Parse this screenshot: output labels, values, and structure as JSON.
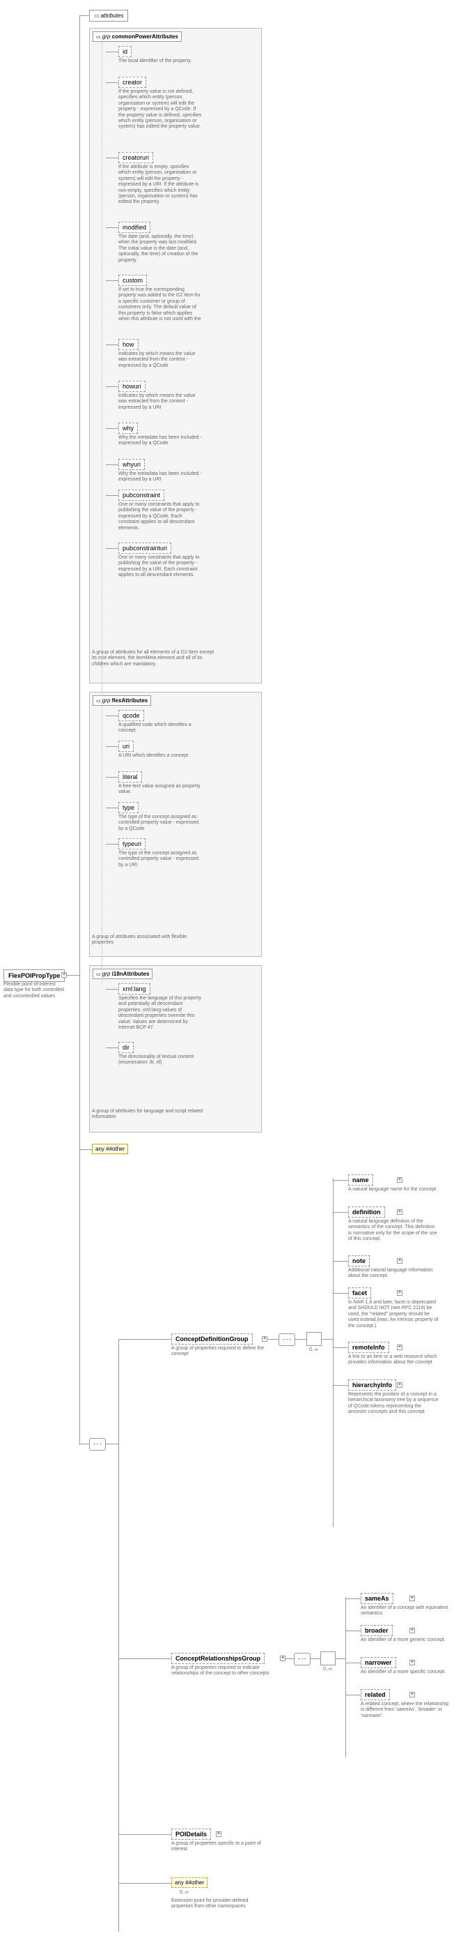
{
  "root": {
    "name": "FlexPOIPropType",
    "desc": "Flexible point-of-interest data type for both controlled and uncontrolled values"
  },
  "group_common": {
    "label": "grp",
    "title": "commonPowerAttributes",
    "desc": "A group of attributes for all elements of a G2 Item except its root element, the itemMeta element and all of its children which are mandatory.",
    "attrs": [
      {
        "name": "id",
        "desc": "The local identifier of the property."
      },
      {
        "name": "creator",
        "desc": "If the property value is not defined, specifies which entity (person, organisation or system) will edit the property - expressed by a QCode. If the property value is defined, specifies which entity (person, organisation or system) has edited the property value."
      },
      {
        "name": "creatoruri",
        "desc": "If the attribute is empty, specifies which entity (person, organisation or system) will edit the property - expressed by a URI. If the attribute is non-empty, specifies which entity (person, organisation or system) has edited the property."
      },
      {
        "name": "modified",
        "desc": "The date (and, optionally, the time) when the property was last modified. The initial value is the date (and, optionally, the time) of creation of the property."
      },
      {
        "name": "custom",
        "desc": "If set to true the corresponding property was added to the G2 Item for a specific customer or group of customers only. The default value of this property is false which applies when this attribute is not used with the"
      },
      {
        "name": "how",
        "desc": "Indicates by which means the value was extracted from the content - expressed by a QCode"
      },
      {
        "name": "howuri",
        "desc": "Indicates by which means the value was extracted from the content - expressed by a URI"
      },
      {
        "name": "why",
        "desc": "Why the metadata has been included - expressed by a QCode"
      },
      {
        "name": "whyuri",
        "desc": "Why the metadata has been included - expressed by a URI"
      },
      {
        "name": "pubconstraint",
        "desc": "One or many constraints that apply to publishing the value of the property - expressed by a QCode. Each constraint applies to all descendant elements."
      },
      {
        "name": "pubconstrainturi",
        "desc": "One or many constraints that apply to publishing the value of the property - expressed by a URI. Each constraint applies to all descendant elements."
      }
    ]
  },
  "group_flex": {
    "label": "grp",
    "title": "flexAttributes",
    "desc": "A group of attributes associated with flexible properties",
    "attrs": [
      {
        "name": "qcode",
        "desc": "A qualified code which identifies a concept."
      },
      {
        "name": "uri",
        "desc": "A URI which identifies a concept."
      },
      {
        "name": "literal",
        "desc": "A free-text value assigned as property value."
      },
      {
        "name": "type",
        "desc": "The type of the concept assigned as controlled property value - expressed by a QCode"
      },
      {
        "name": "typeuri",
        "desc": "The type of the concept assigned as controlled property value - expressed by a URI"
      }
    ]
  },
  "group_i18n": {
    "label": "grp",
    "title": "i18nAttributes",
    "desc": "A group of attributes for language and script related information",
    "attrs": [
      {
        "name": "xml:lang",
        "desc": "Specifies the language of this property and potentially all descendant properties. xml:lang values of descendant properties override this value. Values are determined by Internet BCP 47."
      },
      {
        "name": "dir",
        "desc": "The directionality of textual content (enumeration: ltr, rtl)"
      }
    ]
  },
  "any_other_top": "any ##other",
  "concept_def_group": {
    "name": "ConceptDefinitionGroup",
    "desc": "A group of properties required to define the concept",
    "card": "0..∞",
    "items": [
      {
        "name": "name",
        "desc": "A natural language name for the concept."
      },
      {
        "name": "definition",
        "desc": "A natural language definition of the semantics of the concept. This definition is normative only for the scope of the use of this concept."
      },
      {
        "name": "note",
        "desc": "Additional natural language information about the concept."
      },
      {
        "name": "facet",
        "desc": "In NAR 1.8 and later, facet is deprecated and SHOULD NOT (see RFC 2119) be used, the \"related\" property should be used instead.(was: An intrinsic property of the concept.)"
      },
      {
        "name": "remoteInfo",
        "desc": "A link to an item or a web resource which provides information about the concept"
      },
      {
        "name": "hierarchyInfo",
        "desc": "Represents the position of a concept in a hierarchical taxonomy tree by a sequence of QCode tokens representing the ancestor concepts and this concept"
      }
    ]
  },
  "concept_rel_group": {
    "name": "ConceptRelationshipsGroup",
    "desc": "A group of properties required to indicate relationships of the concept to other concepts",
    "card": "0..∞",
    "items": [
      {
        "name": "sameAs",
        "desc": "An identifier of a concept with equivalent semantics"
      },
      {
        "name": "broader",
        "desc": "An identifier of a more generic concept."
      },
      {
        "name": "narrower",
        "desc": "An identifier of a more specific concept."
      },
      {
        "name": "related",
        "desc": "A related concept, where the relationship is different from 'sameAs', 'broader' or 'narrower'."
      }
    ]
  },
  "poi_details": {
    "name": "POIDetails",
    "desc": "A group of properties specific to a point of interest"
  },
  "any_other_bottom": {
    "name": "any ##other",
    "card": "0..∞",
    "desc": "Extension point for provider-defined properties from other namespaces"
  },
  "attrs_label": "attributes"
}
